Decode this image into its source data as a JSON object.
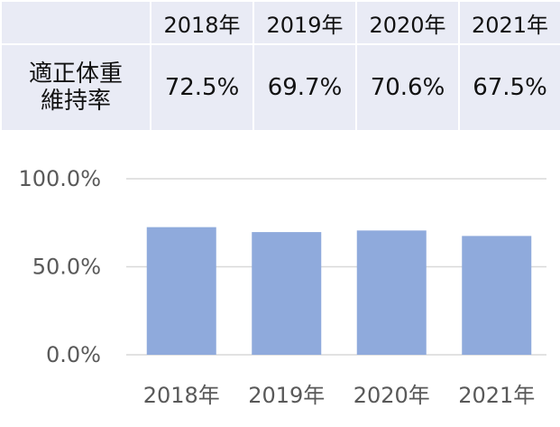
{
  "table": {
    "row_label": "適正体重\n維持率",
    "years": [
      "2018年",
      "2019年",
      "2020年",
      "2021年"
    ],
    "values": [
      "72.5%",
      "69.7%",
      "70.6%",
      "67.5%"
    ]
  },
  "chart_data": {
    "type": "bar",
    "categories": [
      "2018年",
      "2019年",
      "2020年",
      "2021年"
    ],
    "values": [
      72.5,
      69.7,
      70.6,
      67.5
    ],
    "ylim": [
      0,
      100
    ],
    "yticks": [
      "0.0%",
      "50.0%",
      "100.0%"
    ],
    "grid": true,
    "bar_color": "#8faadc",
    "grid_color": "#d9d9d9"
  }
}
